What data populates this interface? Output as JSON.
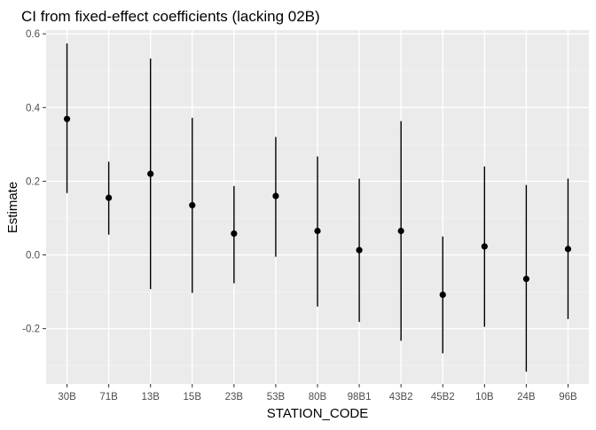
{
  "chart_data": {
    "type": "errorbar",
    "title": "CI from fixed-effect coefficients (lacking 02B)",
    "xlabel": "STATION_CODE",
    "ylabel": "Estimate",
    "ylim": [
      -0.35,
      0.61
    ],
    "yticks": [
      -0.2,
      0.0,
      0.2,
      0.4,
      0.6
    ],
    "ytick_labels": [
      "-0.2",
      "0.0",
      "0.2",
      "0.4",
      "0.6"
    ],
    "grid": true,
    "categories": [
      "30B",
      "71B",
      "13B",
      "15B",
      "23B",
      "53B",
      "80B",
      "98B1",
      "43B2",
      "45B2",
      "10B",
      "24B",
      "96B"
    ],
    "estimates": [
      0.369,
      0.155,
      0.22,
      0.135,
      0.058,
      0.16,
      0.065,
      0.013,
      0.065,
      -0.108,
      0.023,
      -0.065,
      0.016
    ],
    "lower": [
      0.168,
      0.055,
      -0.093,
      -0.103,
      -0.077,
      -0.005,
      -0.14,
      -0.182,
      -0.233,
      -0.267,
      -0.195,
      -0.317,
      -0.174
    ],
    "upper": [
      0.574,
      0.253,
      0.533,
      0.372,
      0.187,
      0.32,
      0.267,
      0.207,
      0.363,
      0.05,
      0.24,
      0.19,
      0.207
    ],
    "colors": {
      "panel_background": "#ebebeb",
      "grid_major": "#ffffff",
      "grid_minor": "#f4f4f4",
      "point": "#000000",
      "bar": "#000000",
      "axis_text": "#4d4d4d",
      "title_text": "#000000"
    }
  }
}
